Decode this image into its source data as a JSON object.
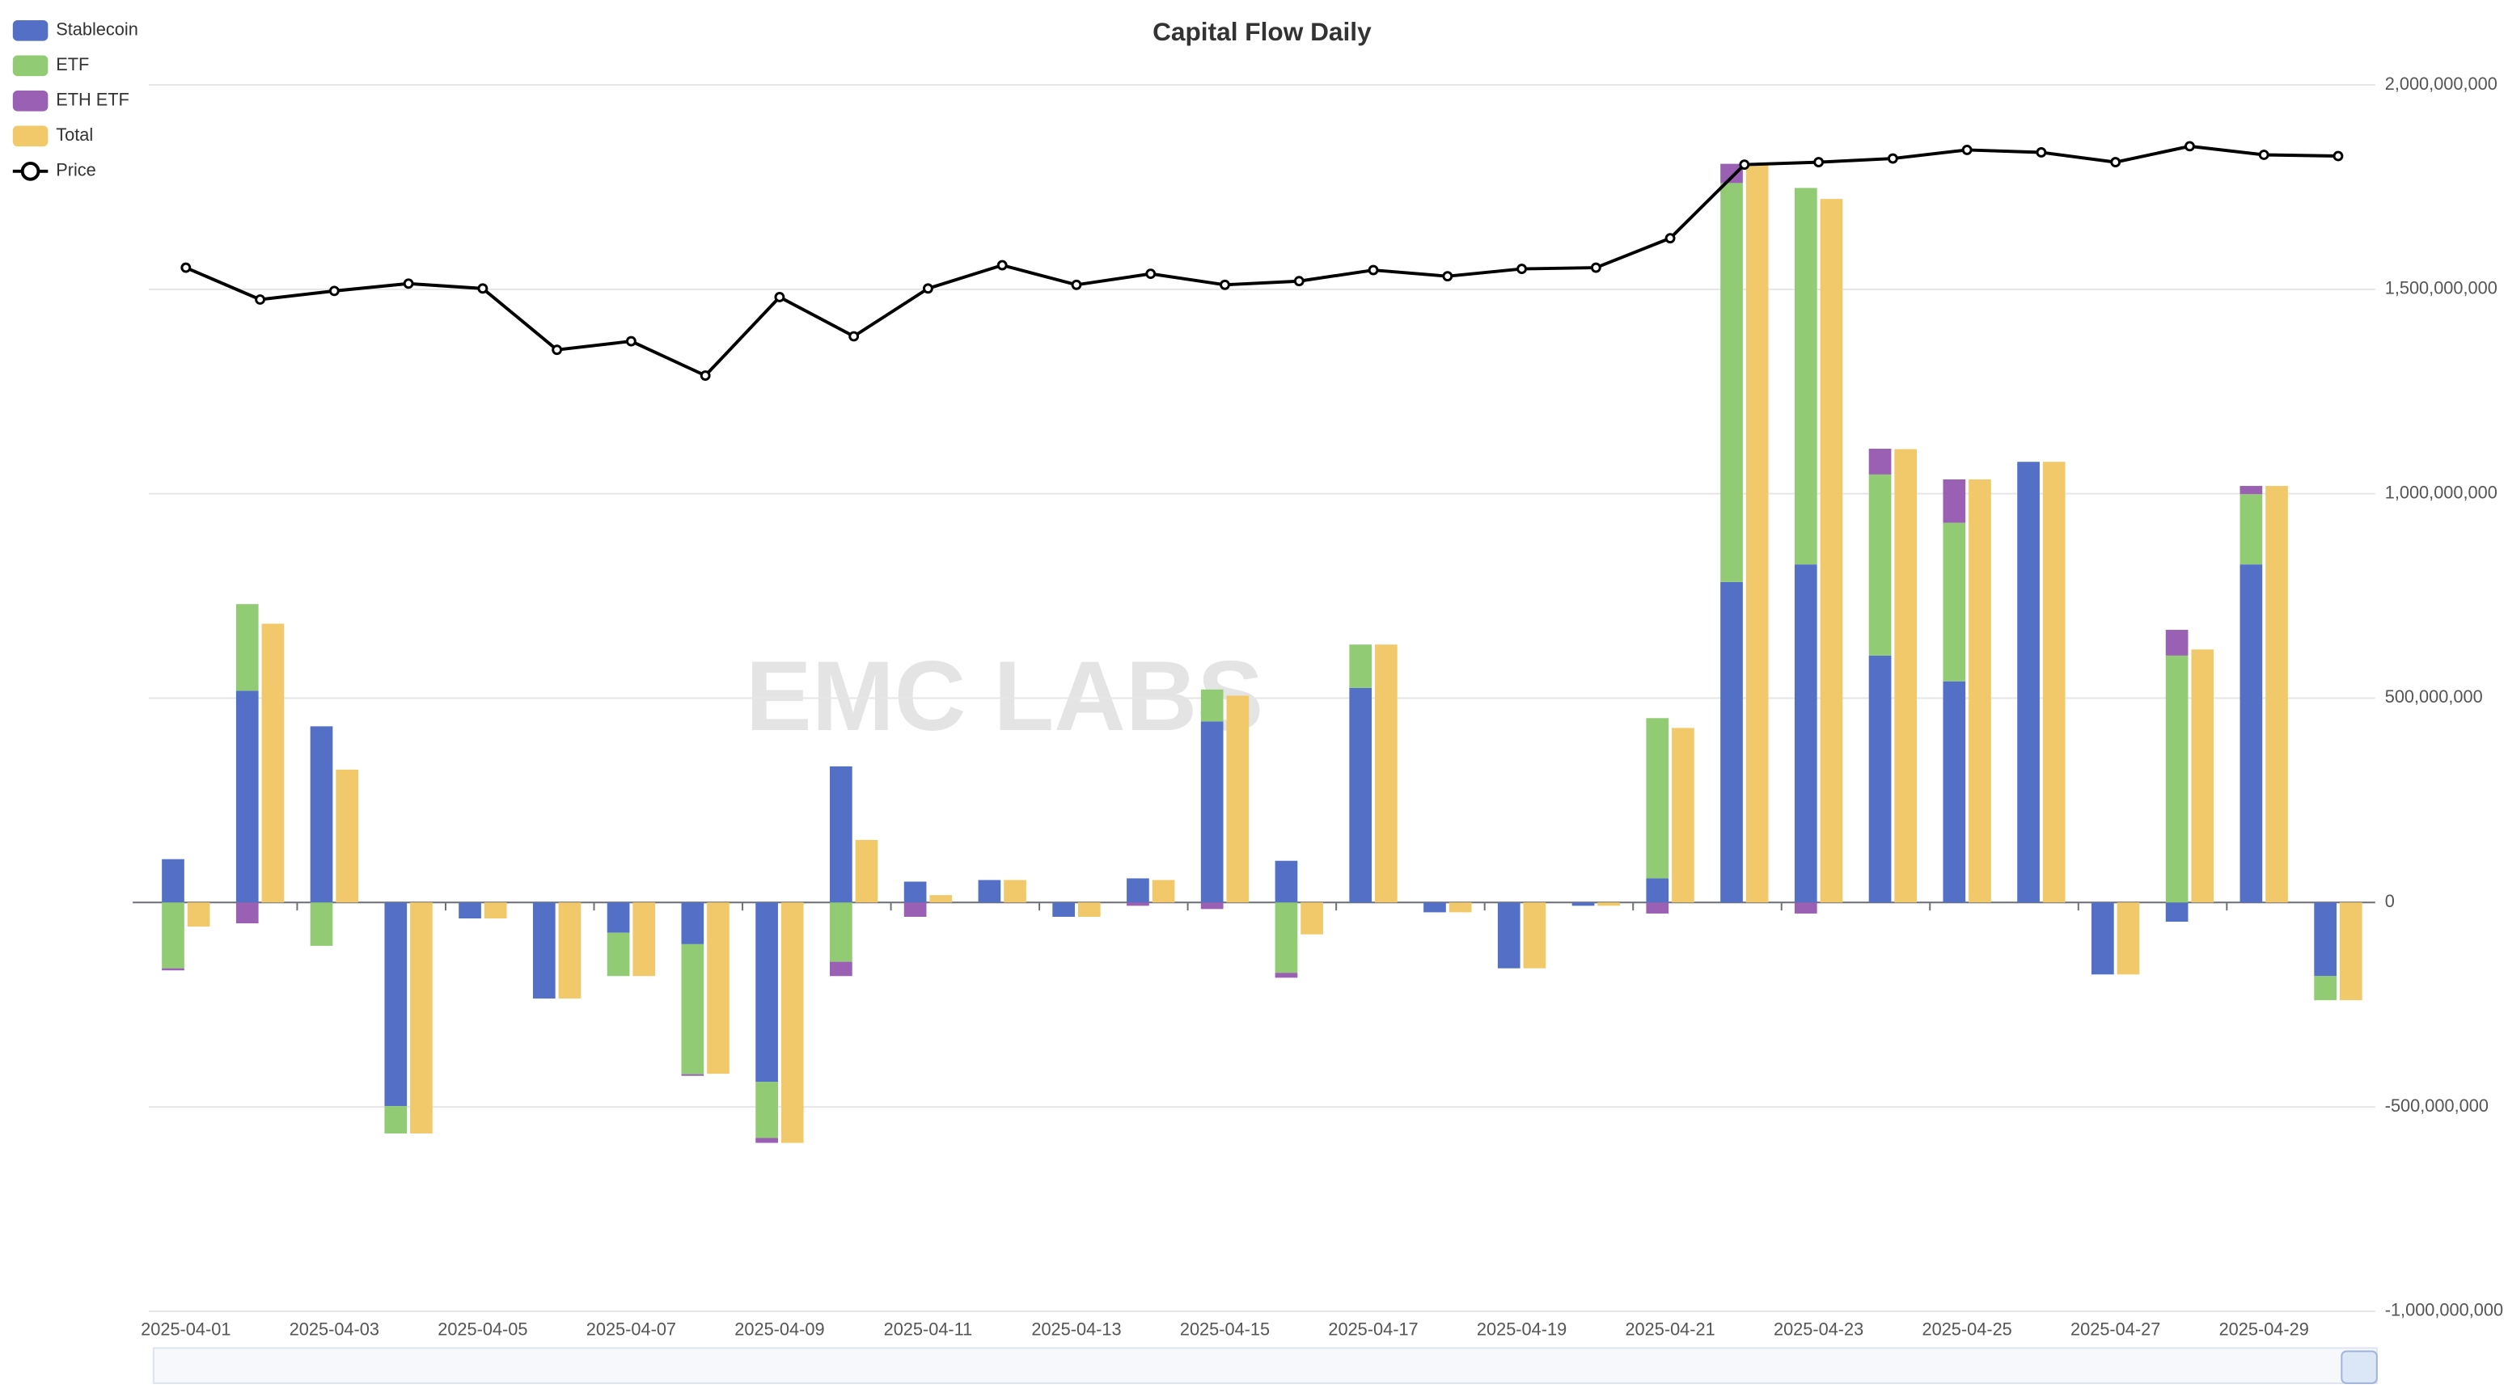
{
  "chart_data": {
    "type": "bar",
    "title": "Capital Flow Daily",
    "watermark": "EMC LABS",
    "categories": [
      "2025-04-01",
      null,
      "2025-04-03",
      null,
      "2025-04-05",
      null,
      "2025-04-07",
      null,
      "2025-04-09",
      null,
      "2025-04-11",
      null,
      "2025-04-13",
      null,
      "2025-04-15",
      null,
      "2025-04-17",
      null,
      "2025-04-19",
      null,
      "2025-04-21",
      null,
      "2025-04-23",
      null,
      "2025-04-25",
      null,
      "2025-04-27",
      null,
      "2025-04-29",
      null
    ],
    "ylim": [
      -1000000000,
      2000000000
    ],
    "yticks": [
      {
        "value": -1000000000,
        "label": "-1,000,000,000"
      },
      {
        "value": -500000000,
        "label": "-500,000,000"
      },
      0,
      {
        "value": 500000000,
        "label": "500,000,000"
      },
      {
        "value": 1000000000,
        "label": "1,000,000,000"
      },
      {
        "value": 1500000000,
        "label": "1,500,000,000"
      },
      {
        "value": 2000000000,
        "label": "2,000,000,000"
      }
    ],
    "y2lim": [
      0,
      100000
    ],
    "grid": true,
    "legend": "top-left",
    "series": [
      {
        "name": "Stablecoin",
        "color": "#5470c6",
        "stack": "flow",
        "values": [
          106000000,
          518000000,
          431000000,
          -498000000,
          -39000000,
          -235000000,
          -74000000,
          -102000000,
          -439000000,
          333000000,
          51000000,
          55000000,
          -35000000,
          59000000,
          443000000,
          102000000,
          525000000,
          -24000000,
          -161000000,
          -8000000,
          59000000,
          784000000,
          827000000,
          604000000,
          541000000,
          1078000000,
          -176000000,
          -47000000,
          827000000,
          -180000000
        ]
      },
      {
        "name": "ETF",
        "color": "#91cc75",
        "stack": "flow",
        "values": [
          -161000000,
          212000000,
          -106000000,
          -67000000,
          0,
          0,
          -106000000,
          -318000000,
          -137000000,
          -145000000,
          0,
          0,
          0,
          0,
          78000000,
          -172000000,
          106000000,
          0,
          0,
          0,
          392000000,
          976000000,
          921000000,
          443000000,
          388000000,
          0,
          0,
          604000000,
          172000000,
          -59000000
        ]
      },
      {
        "name": "ETH ETF",
        "color": "#9a60b4",
        "stack": "flow",
        "values": [
          -5000000,
          -51000000,
          0,
          0,
          0,
          0,
          0,
          -4000000,
          -12000000,
          -35000000,
          -35000000,
          0,
          0,
          -8000000,
          -16000000,
          -12000000,
          0,
          0,
          0,
          0,
          -27000000,
          47000000,
          -27000000,
          63000000,
          106000000,
          0,
          0,
          63000000,
          20000000,
          0
        ]
      },
      {
        "name": "Total",
        "color": "#f2c96a",
        "stack": "total",
        "values": [
          -59000000,
          682000000,
          325000000,
          -565000000,
          -39000000,
          -235000000,
          -180000000,
          -419000000,
          -588000000,
          153000000,
          18000000,
          55000000,
          -35000000,
          55000000,
          506000000,
          -78000000,
          631000000,
          -24000000,
          -161000000,
          -8000000,
          427000000,
          1807000000,
          1721000000,
          1109000000,
          1035000000,
          1078000000,
          -176000000,
          619000000,
          1019000000,
          -239000000
        ]
      },
      {
        "name": "Price",
        "color": "#000000",
        "type": "line",
        "axis": "y2",
        "values": [
          85100,
          82500,
          83200,
          83800,
          83400,
          78400,
          79100,
          76300,
          82700,
          79500,
          83400,
          85300,
          83700,
          84600,
          83700,
          84000,
          84900,
          84400,
          85000,
          85100,
          87500,
          93500,
          93700,
          94000,
          94700,
          94500,
          93700,
          95000,
          94300,
          94200
        ]
      }
    ]
  }
}
